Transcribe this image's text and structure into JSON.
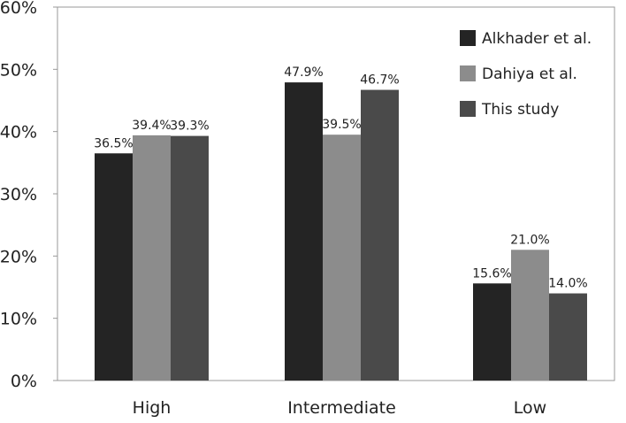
{
  "chart_data": {
    "type": "bar",
    "categories": [
      "High",
      "Intermediate",
      "Low"
    ],
    "series": [
      {
        "name": "Alkhader et al.",
        "values": [
          36.5,
          47.9,
          15.6
        ],
        "color": "#242424"
      },
      {
        "name": "Dahiya et al.",
        "values": [
          39.4,
          39.5,
          21.0
        ],
        "color": "#8c8c8c"
      },
      {
        "name": "This study",
        "values": [
          39.3,
          46.7,
          14.0
        ],
        "color": "#4a4a4a"
      }
    ],
    "data_labels": [
      [
        "36.5%",
        "47.9%",
        "15.6%"
      ],
      [
        "39.4%",
        "39.5%",
        "21.0%"
      ],
      [
        "39.3%",
        "46.7%",
        "14.0%"
      ]
    ],
    "y_ticks": [
      0,
      10,
      20,
      30,
      40,
      50,
      60
    ],
    "y_tick_labels": [
      "0%",
      "10%",
      "20%",
      "30%",
      "40%",
      "50%",
      "60%"
    ],
    "ylim": [
      0,
      60
    ],
    "title": "",
    "xlabel": "",
    "ylabel": "",
    "grid": false,
    "legend_position": "top-right"
  }
}
